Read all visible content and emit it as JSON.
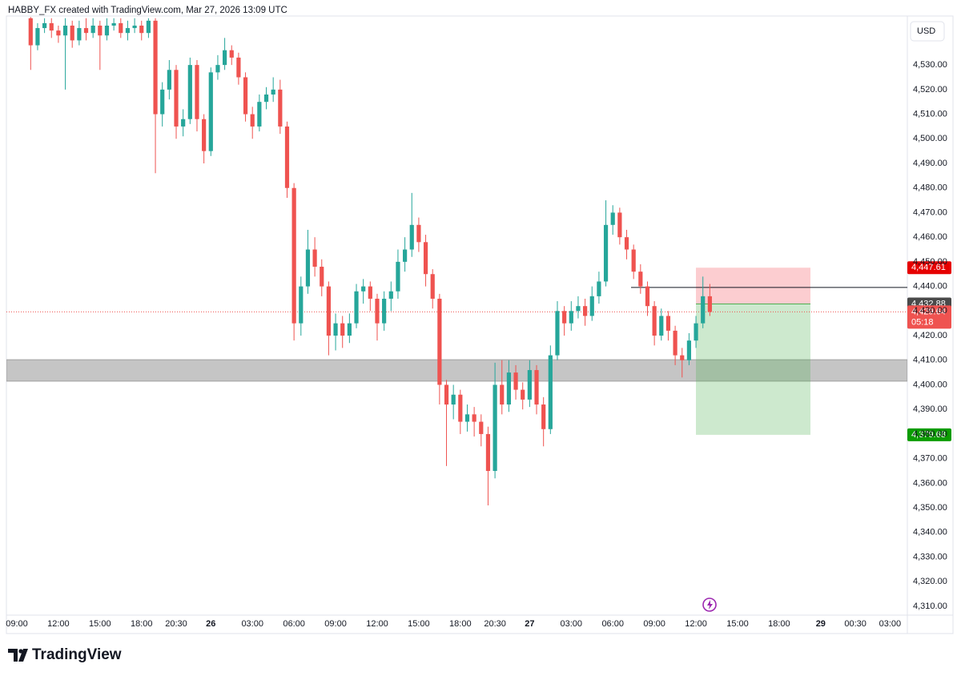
{
  "header": {
    "title": "HABBY_FX created with TradingView.com, Mar 27, 2026 13:09 UTC"
  },
  "chart_data": {
    "type": "candlestick",
    "currency": "USD",
    "categories": [
      null,
      "09:00",
      null,
      null,
      null,
      null,
      null,
      "12:00",
      null,
      null,
      null,
      null,
      null,
      "15:00",
      null,
      null,
      null,
      null,
      null,
      "18:00",
      null,
      null,
      null,
      null,
      "20:30",
      null,
      null,
      null,
      null,
      "26",
      null,
      null,
      null,
      null,
      null,
      "03:00",
      null,
      null,
      null,
      null,
      null,
      "06:00",
      null,
      null,
      null,
      null,
      null,
      "09:00",
      null,
      null,
      null,
      null,
      null,
      "12:00",
      null,
      null,
      null,
      null,
      null,
      "15:00",
      null,
      null,
      null,
      null,
      null,
      "18:00",
      null,
      null,
      null,
      null,
      "20:30",
      null,
      null,
      null,
      null,
      "27",
      null,
      null,
      null,
      null,
      null,
      "03:00",
      null,
      null,
      null,
      null,
      null,
      "06:00",
      null,
      null,
      null,
      null,
      null,
      "09:00",
      null,
      null,
      null,
      null,
      null,
      "12:00",
      null,
      null,
      null,
      null,
      null,
      "15:00",
      null,
      null,
      null,
      null,
      null,
      "18:00",
      null,
      null,
      null,
      null,
      null,
      "29",
      null,
      null,
      null,
      null,
      "00:30",
      null,
      null,
      null,
      null,
      "03:00",
      null,
      null
    ],
    "open": [
      null,
      null,
      null,
      4549,
      4538,
      4545,
      4547,
      4544,
      4542,
      4546,
      4540,
      4545,
      4543,
      4546,
      4542,
      4546,
      4547,
      4543,
      4545,
      4546,
      4543,
      4548,
      4510,
      4520,
      4528,
      4505,
      4508,
      4530,
      4508,
      4495,
      4527,
      4530,
      4536,
      4533,
      4525,
      4510,
      4505,
      4515,
      4518,
      4520,
      4505,
      4480,
      4425,
      4440,
      4455,
      4448,
      4440,
      4420,
      4425,
      4420,
      4425,
      4438,
      4440,
      4435,
      4425,
      4435,
      4438,
      4450,
      4455,
      4465,
      4458,
      4445,
      4435,
      4400,
      4392,
      4396,
      4385,
      4388,
      4385,
      4380,
      4365,
      4400,
      4392,
      4405,
      4398,
      4394,
      4406,
      4392,
      4382,
      4412,
      4430,
      4425,
      4430,
      4432,
      4428,
      4436,
      4442,
      4465,
      4470,
      4460,
      4455,
      4446,
      4440,
      4432,
      4420,
      4428,
      4422,
      4412,
      4410,
      4418,
      4425,
      4436,
      null,
      null,
      null,
      null,
      null,
      null,
      null,
      null,
      null,
      null,
      null,
      null,
      null,
      null,
      null,
      null,
      null,
      null,
      null,
      null,
      null,
      null,
      null,
      null,
      null,
      null,
      null,
      null
    ],
    "high": [
      null,
      null,
      null,
      4549.5,
      4547,
      4549,
      4549,
      4546,
      4549,
      4548,
      4548,
      4549,
      4549,
      4548,
      4549,
      4549,
      4549,
      4548,
      4549,
      4548,
      4549,
      4549,
      4523,
      4532,
      4530,
      4512,
      4533,
      4532,
      4510,
      4529,
      4534,
      4541,
      4538,
      4535,
      4527,
      4513,
      4518,
      4521,
      4525,
      4524,
      4507,
      4482,
      4444,
      4463,
      4460,
      4451,
      4442,
      4429,
      4428,
      4429,
      4441,
      4443,
      4442,
      4437,
      4438,
      4442,
      4455,
      4460,
      4478,
      4468,
      4461,
      4447,
      4437,
      4402,
      4400,
      4398,
      4392,
      4391,
      4388,
      4383,
      4409,
      4410,
      4410,
      4408,
      4401,
      4410,
      4408,
      4395,
      4416,
      4434,
      4432,
      4434,
      4436,
      4435,
      4440,
      4446,
      4475,
      4473,
      4472,
      4463,
      4457,
      4449,
      4442,
      4434,
      4431,
      4430,
      4424,
      4415,
      4421,
      4428,
      4444,
      4441,
      null,
      null,
      null,
      null,
      null,
      null,
      null,
      null,
      null,
      null,
      null,
      null,
      null,
      null,
      null,
      null,
      null,
      null,
      null,
      null,
      null,
      null,
      null,
      null,
      null,
      null,
      null,
      null
    ],
    "low": [
      null,
      null,
      null,
      4528,
      4536,
      4543,
      4541,
      4539,
      4520,
      4537,
      4538,
      4540,
      4541,
      4528,
      4540,
      4544,
      4541,
      4540,
      4543,
      4540,
      4541,
      4486,
      4505,
      4516,
      4500,
      4501,
      4506,
      4503,
      4490,
      4493,
      4524,
      4528,
      4530,
      4522,
      4507,
      4500,
      4503,
      4512,
      4515,
      4502,
      4476,
      4418,
      4420,
      4437,
      4444,
      4436,
      4412,
      4414,
      4415,
      4417,
      4423,
      4433,
      4430,
      4418,
      4422,
      4430,
      4435,
      4446,
      4452,
      4454,
      4440,
      4431,
      4392,
      4367,
      4386,
      4380,
      4381,
      4379,
      4375,
      4351,
      4362,
      4388,
      4389,
      4394,
      4390,
      4391,
      4388,
      4375,
      4380,
      4410,
      4420,
      4422,
      4427,
      4424,
      4426,
      4433,
      4440,
      4461,
      4457,
      4451,
      4443,
      4437,
      4428,
      4416,
      4418,
      4418,
      4408,
      4403,
      4408,
      4415,
      4423,
      4428,
      null,
      null,
      null,
      null,
      null,
      null,
      null,
      null,
      null,
      null,
      null,
      null,
      null,
      null,
      null,
      null,
      null,
      null,
      null,
      null,
      null,
      null,
      null,
      null,
      null,
      null,
      null,
      null
    ],
    "close": [
      null,
      null,
      null,
      4538,
      4545,
      4547,
      4544,
      4542,
      4546,
      4540,
      4545,
      4543,
      4546,
      4542,
      4546,
      4547,
      4543,
      4545,
      4546,
      4543,
      4548,
      4510,
      4520,
      4528,
      4505,
      4508,
      4530,
      4508,
      4495,
      4527,
      4530,
      4536,
      4533,
      4525,
      4510,
      4505,
      4515,
      4518,
      4520,
      4505,
      4480,
      4425,
      4440,
      4455,
      4448,
      4440,
      4420,
      4425,
      4420,
      4425,
      4438,
      4440,
      4435,
      4425,
      4435,
      4438,
      4450,
      4455,
      4465,
      4458,
      4445,
      4435,
      4400,
      4392,
      4396,
      4385,
      4388,
      4385,
      4380,
      4365,
      4400,
      4392,
      4405,
      4398,
      4394,
      4406,
      4392,
      4382,
      4412,
      4430,
      4425,
      4430,
      4432,
      4428,
      4436,
      4442,
      4465,
      4470,
      4460,
      4455,
      4446,
      4440,
      4432,
      4420,
      4428,
      4422,
      4412,
      4410,
      4418,
      4425,
      4436,
      4429.64,
      null,
      null,
      null,
      null,
      null,
      null,
      null,
      null,
      null,
      null,
      null,
      null,
      null,
      null,
      null,
      null,
      null,
      null,
      null,
      null,
      null,
      null,
      null,
      null,
      null,
      null,
      null,
      null
    ],
    "up_color": "#26a69a",
    "down_color": "#ef5350",
    "ylim": [
      4306.4,
      4549.9
    ],
    "yticks": [
      {
        "value": 4310,
        "label": "4,310.00"
      },
      {
        "value": 4320,
        "label": "4,320.00"
      },
      {
        "value": 4330,
        "label": "4,330.00"
      },
      {
        "value": 4340,
        "label": "4,340.00"
      },
      {
        "value": 4350,
        "label": "4,350.00"
      },
      {
        "value": 4360,
        "label": "4,360.00"
      },
      {
        "value": 4370,
        "label": "4,370.00"
      },
      {
        "value": 4380,
        "label": "4,380.00"
      },
      {
        "value": 4390,
        "label": "4,390.00"
      },
      {
        "value": 4400,
        "label": "4,400.00"
      },
      {
        "value": 4410,
        "label": "4,410.00"
      },
      {
        "value": 4420,
        "label": "4,420.00"
      },
      {
        "value": 4430,
        "label": "4,430.00"
      },
      {
        "value": 4440,
        "label": "4,440.00"
      },
      {
        "value": 4450,
        "label": "4,450.00"
      },
      {
        "value": 4460,
        "label": "4,460.00"
      },
      {
        "value": 4470,
        "label": "4,470.00"
      },
      {
        "value": 4480,
        "label": "4,480.00"
      },
      {
        "value": 4490,
        "label": "4,490.00"
      },
      {
        "value": 4500,
        "label": "4,500.00"
      },
      {
        "value": 4510,
        "label": "4,510.00"
      },
      {
        "value": 4520,
        "label": "4,520.00"
      },
      {
        "value": 4530,
        "label": "4,530.00"
      }
    ],
    "zone": {
      "low": 4401.5,
      "high": 4410.2
    },
    "horizontal_line": 4439.6,
    "position": {
      "stop": {
        "value": 4447.61,
        "label": "4,447.61"
      },
      "entry": {
        "value": 4432.88,
        "label": "4,432.88"
      },
      "target": {
        "value": 4379.68,
        "label": "4,379.68"
      }
    },
    "last_price": {
      "value": 4429.64,
      "label": "4,429.64"
    },
    "countdown": "05:18"
  },
  "footer": {
    "brand": "TradingView"
  }
}
